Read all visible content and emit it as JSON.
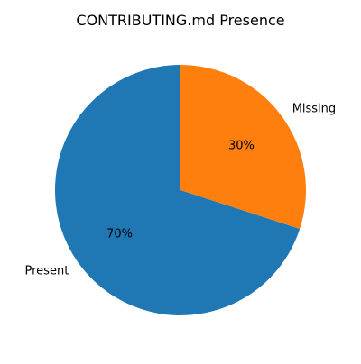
{
  "chart_data": {
    "type": "pie",
    "title": "CONTRIBUTING.md Presence",
    "start_angle_deg": 90,
    "direction": "counterclockwise",
    "slices": [
      {
        "label": "Present",
        "value": 70,
        "pct_label": "70%",
        "color": "#1f77b4"
      },
      {
        "label": "Missing",
        "value": 30,
        "pct_label": "30%",
        "color": "#ff7f0e"
      }
    ]
  }
}
